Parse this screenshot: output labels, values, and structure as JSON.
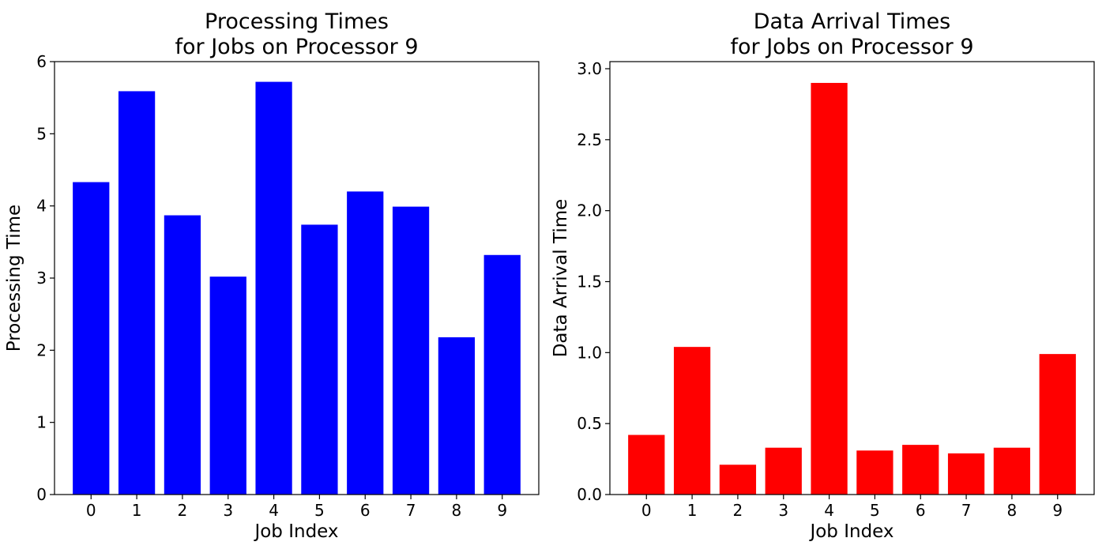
{
  "chart_data": [
    {
      "type": "bar",
      "title": [
        "Processing Times",
        "for Jobs on Processor 9"
      ],
      "xlabel": "Job Index",
      "ylabel": "Processing Time",
      "categories": [
        "0",
        "1",
        "2",
        "3",
        "4",
        "5",
        "6",
        "7",
        "8",
        "9"
      ],
      "values": [
        4.33,
        5.59,
        3.87,
        3.02,
        5.72,
        3.74,
        4.2,
        3.99,
        2.18,
        3.32
      ],
      "ylim": [
        0,
        6
      ],
      "yticks": [
        "0",
        "1",
        "2",
        "3",
        "4",
        "5",
        "6"
      ],
      "color": "#0000ff",
      "grid": false,
      "legend": "none"
    },
    {
      "type": "bar",
      "title": [
        "Data Arrival Times",
        "for Jobs on Processor 9"
      ],
      "xlabel": "Job Index",
      "ylabel": "Data Arrival Time",
      "categories": [
        "0",
        "1",
        "2",
        "3",
        "4",
        "5",
        "6",
        "7",
        "8",
        "9"
      ],
      "values": [
        0.42,
        1.04,
        0.21,
        0.33,
        2.9,
        0.31,
        0.35,
        0.29,
        0.33,
        0.99
      ],
      "ylim": [
        0,
        3.05
      ],
      "yticks": [
        "0.0",
        "0.5",
        "1.0",
        "1.5",
        "2.0",
        "2.5",
        "3.0"
      ],
      "color": "#ff0000",
      "grid": false,
      "legend": "none"
    }
  ]
}
